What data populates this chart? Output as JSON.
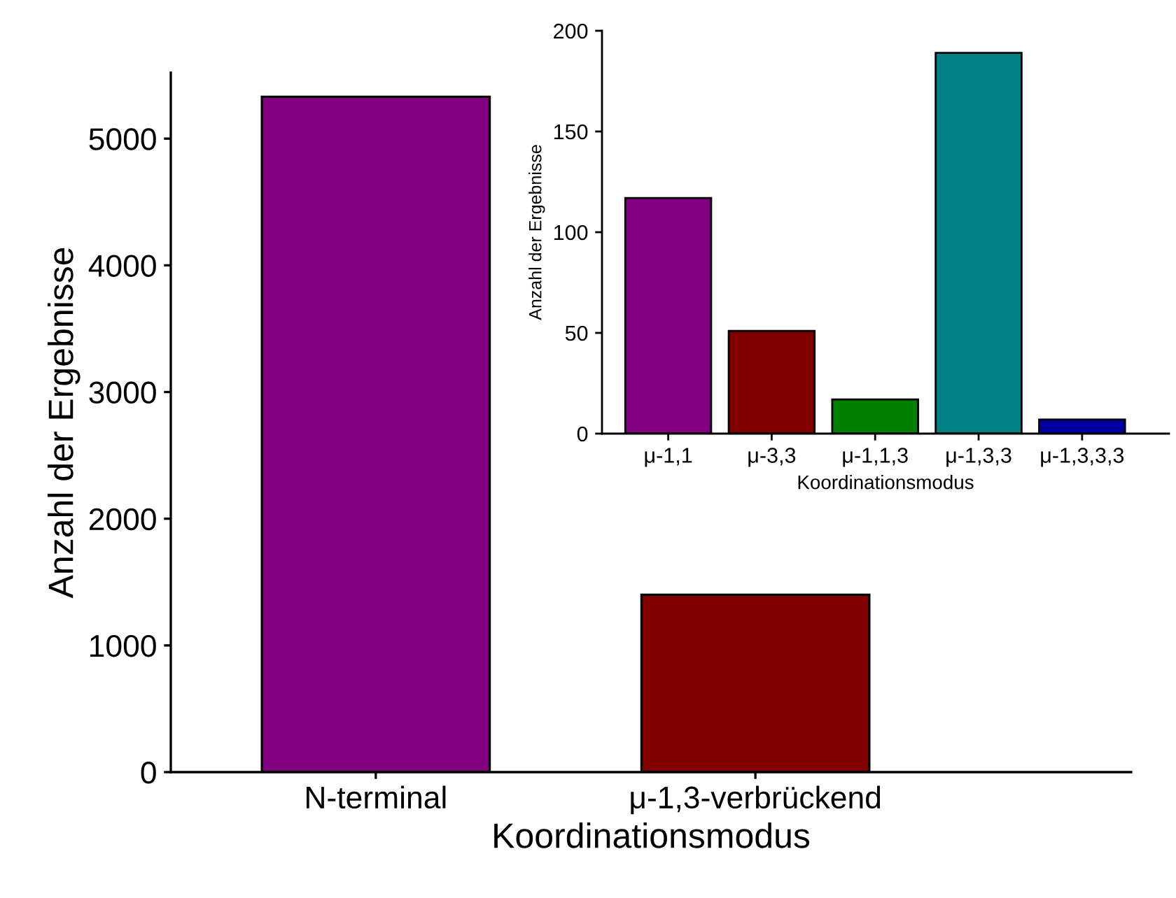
{
  "chart_data": [
    {
      "type": "bar",
      "xlabel": "Koordinationsmodus",
      "ylabel": "Anzahl der Ergebnisse",
      "categories": [
        "N-terminal",
        "μ-1,3-verbrückend"
      ],
      "values": [
        5330,
        1400
      ],
      "colors": [
        "#800080",
        "#800000"
      ],
      "ylim": [
        0,
        5520
      ],
      "yticks": [
        0,
        1000,
        2000,
        3000,
        4000,
        5000
      ],
      "grid": false
    },
    {
      "type": "bar",
      "xlabel": "Koordinationsmodus",
      "ylabel": "Anzahl der Ergebnisse",
      "categories": [
        "μ-1,1",
        "μ-3,3",
        "μ-1,1,3",
        "μ-1,3,3",
        "μ-1,3,3,3"
      ],
      "values": [
        117,
        51,
        17,
        189,
        7
      ],
      "colors": [
        "#800080",
        "#800000",
        "#008000",
        "#008080",
        "#0000a0"
      ],
      "ylim": [
        0,
        200
      ],
      "yticks": [
        0,
        50,
        100,
        150,
        200
      ],
      "grid": false
    }
  ]
}
